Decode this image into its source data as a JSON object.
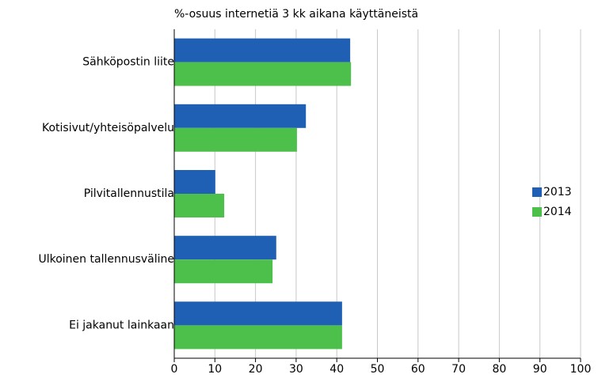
{
  "chart_data": {
    "type": "barh",
    "subtitle": "%-osuus internetiä 3 kk aikana käyttäneistä",
    "categories": [
      "Sähköpostin liite",
      "Kotisivut/yhteisöpalvelu",
      "Pilvitallennustila",
      "Ulkoinen tallennusväline",
      "Ei jakanut lainkaan"
    ],
    "series": [
      {
        "name": "2013",
        "color": "#1f5fb4",
        "values": [
          43.3,
          32.4,
          10.1,
          25.1,
          41.3
        ]
      },
      {
        "name": "2014",
        "color": "#4cc04a",
        "values": [
          43.5,
          30.2,
          12.3,
          24.2,
          41.3
        ]
      }
    ],
    "xlim": [
      0,
      100
    ],
    "xticks": [
      0,
      10,
      20,
      30,
      40,
      50,
      60,
      70,
      80,
      90,
      100
    ],
    "grid": true,
    "legend": "right"
  }
}
